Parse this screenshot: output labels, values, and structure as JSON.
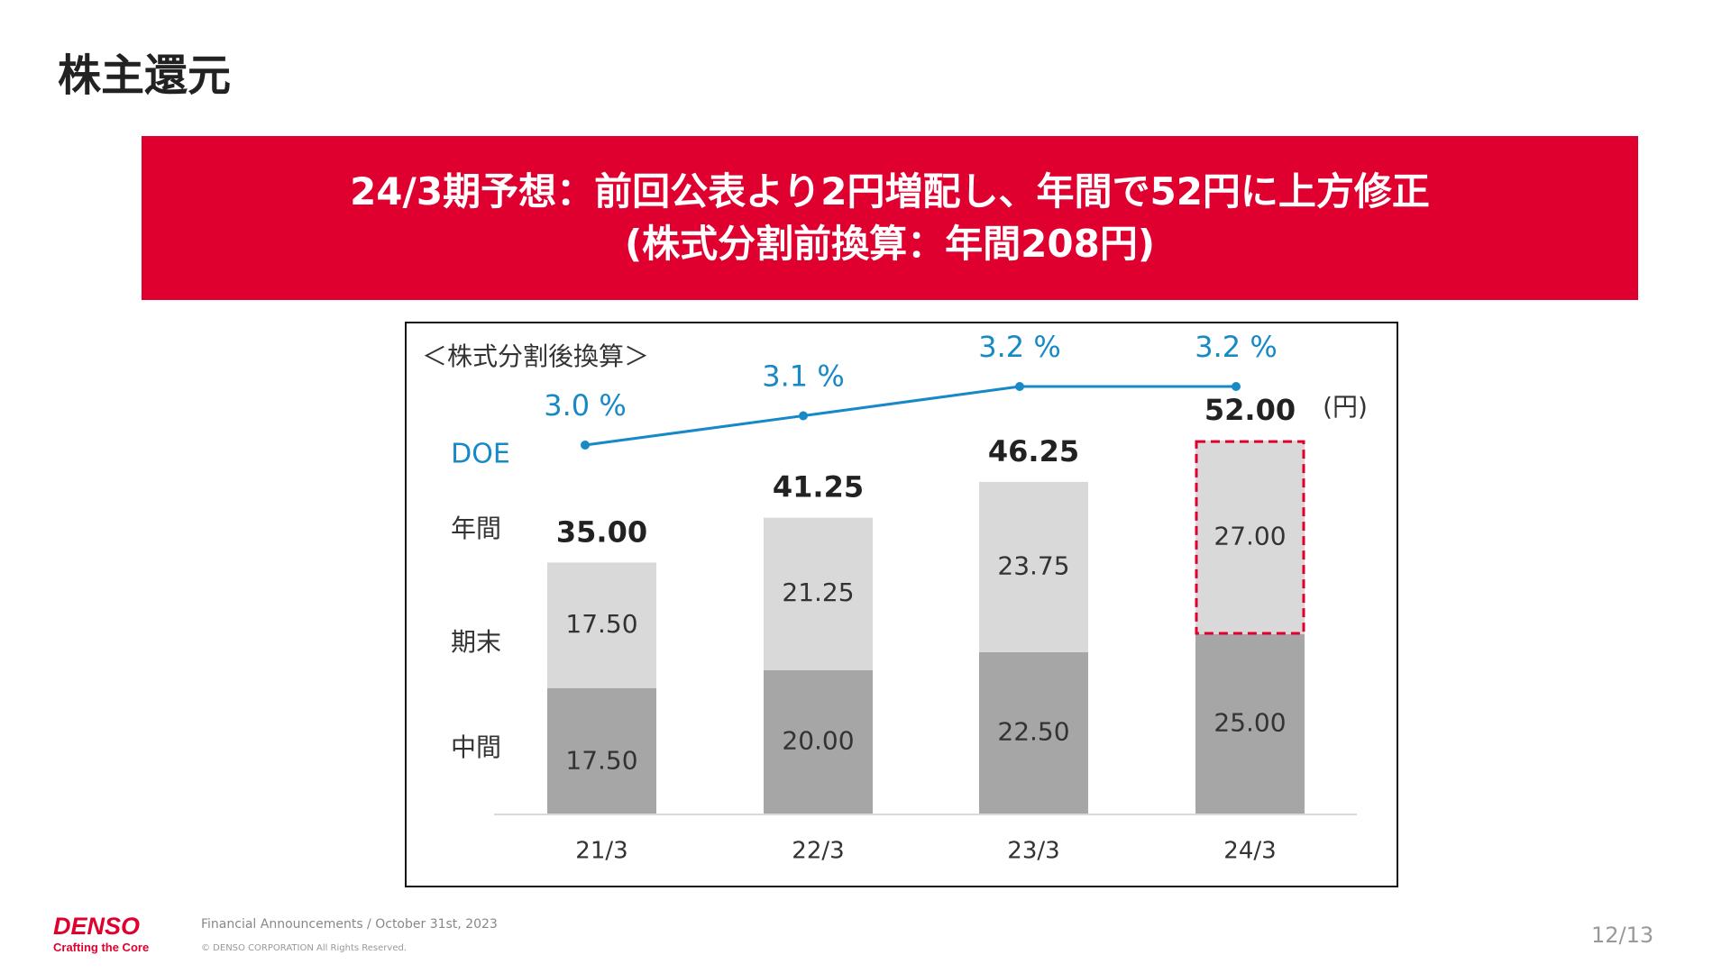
{
  "title": "株主還元",
  "banner": {
    "line1": "24/3期予想：前回公表より2円増配し、年間で52円に上方修正",
    "line2": "(株式分割前換算：年間208円)"
  },
  "footer": {
    "brand": "DENSO",
    "tagline": "Crafting the Core",
    "announcement": "Financial Announcements / October 31st, 2023",
    "copyright": "© DENSO CORPORATION All Rights Reserved.",
    "page": "12/13"
  },
  "colors": {
    "accent": "#E0002F",
    "interim": "#A6A6A6",
    "final": "#D9D9D9",
    "doe": "#1689C6"
  },
  "chart_data": {
    "type": "bar",
    "stacked": true,
    "note": "＜株式分割後換算＞",
    "unit": "(円)",
    "categories": [
      "21/3",
      "22/3",
      "23/3",
      "24/3"
    ],
    "row_labels": {
      "annual": "年間",
      "final": "期末",
      "interim": "中間"
    },
    "series": [
      {
        "values": [
          17.5,
          20.0,
          22.5,
          25.0
        ],
        "labels": [
          "17.50",
          "20.00",
          "22.50",
          "25.00"
        ]
      },
      {
        "values": [
          17.5,
          21.25,
          23.75,
          27.0
        ],
        "labels": [
          "17.50",
          "21.25",
          "23.75",
          "27.00"
        ]
      }
    ],
    "totals": [
      "35.00",
      "41.25",
      "46.25",
      "52.00"
    ],
    "doe": {
      "name": "DOE",
      "values": [
        3.0,
        3.1,
        3.2,
        3.2
      ],
      "labels": [
        "3.0 %",
        "3.1 %",
        "3.2 %",
        "3.2 %"
      ]
    },
    "ylim": [
      0,
      52
    ]
  }
}
